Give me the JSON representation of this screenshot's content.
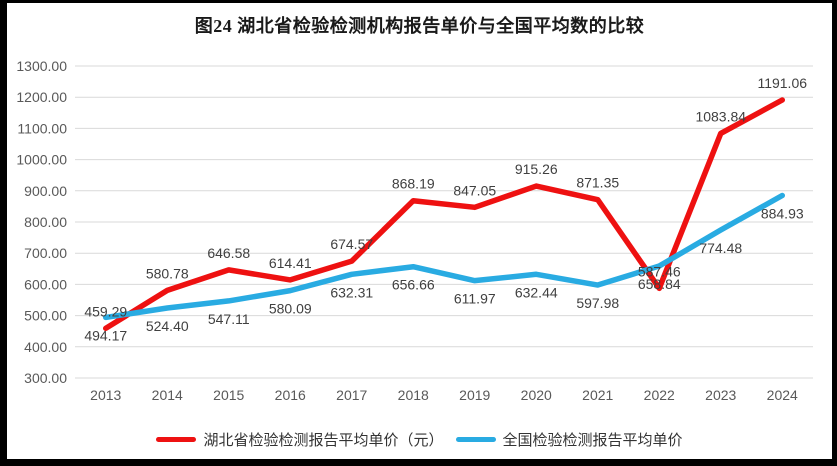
{
  "title": "图24 湖北省检验检测机构报告单价与全国平均数的比较",
  "colors": {
    "hubei_line": "#ee1111",
    "national_line": "#29abe2",
    "gridline": "#d9d9d9",
    "axis_text": "#595959",
    "data_label_text": "#404040",
    "frame_border": "#000000",
    "background": "#ffffff"
  },
  "chart_data": {
    "type": "line",
    "title": "图24 湖北省检验检测机构报告单价与全国平均数的比较",
    "categories": [
      "2013",
      "2014",
      "2015",
      "2016",
      "2017",
      "2018",
      "2019",
      "2020",
      "2021",
      "2022",
      "2023",
      "2024"
    ],
    "series": [
      {
        "name": "湖北省检验检测报告平均单价（元）",
        "color": "#ee1111",
        "label_position": "above",
        "values": [
          459.29,
          580.78,
          646.58,
          614.41,
          674.57,
          868.19,
          847.05,
          915.26,
          871.35,
          587.46,
          1083.84,
          1191.06
        ],
        "labels": [
          "459.29",
          "580.78",
          "646.58",
          "614.41",
          "674.57",
          "868.19",
          "847.05",
          "915.26",
          "871.35",
          "587.46",
          "1083.84",
          "1191.06"
        ]
      },
      {
        "name": "全国检验检测报告平均单价",
        "color": "#29abe2",
        "label_position": "below",
        "values": [
          494.17,
          524.4,
          547.11,
          580.09,
          632.31,
          656.66,
          611.97,
          632.44,
          597.98,
          658.84,
          774.48,
          884.93
        ],
        "labels": [
          "494.17",
          "524.40",
          "547.11",
          "580.09",
          "632.31",
          "656.66",
          "611.97",
          "632.44",
          "597.98",
          "658.84",
          "774.48",
          "884.93"
        ]
      }
    ],
    "ylim": [
      300,
      1300
    ],
    "ytick_step": 100,
    "yticks": [
      "1300.00",
      "1200.00",
      "1100.00",
      "1000.00",
      "900.00",
      "800.00",
      "700.00",
      "600.00",
      "500.00",
      "400.00",
      "300.00"
    ],
    "grid": true,
    "legend_position": "bottom",
    "xlabel": "",
    "ylabel": ""
  }
}
